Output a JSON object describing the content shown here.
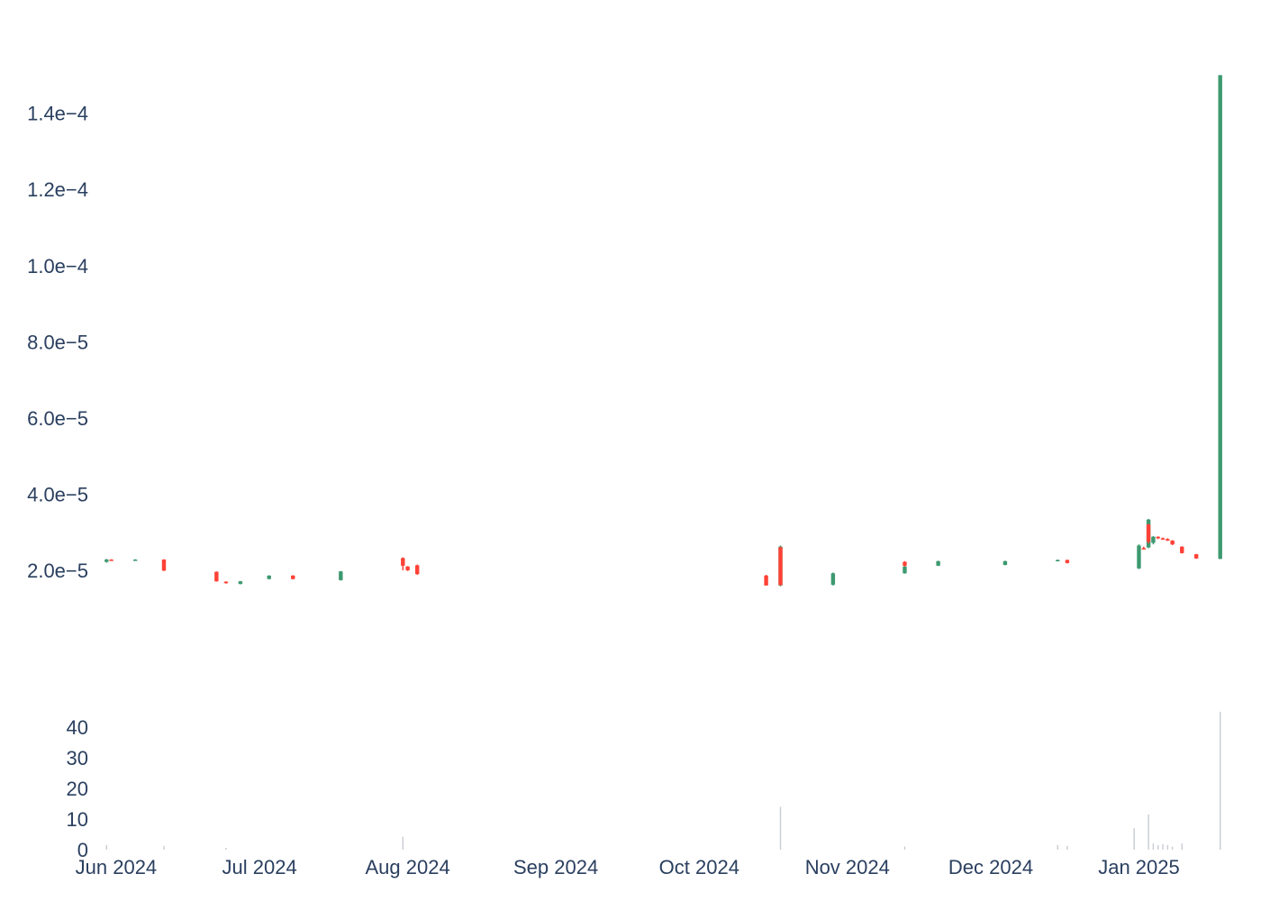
{
  "chart_data": {
    "type": "candlestick",
    "title": "",
    "xlabel": "",
    "ylabel": "",
    "grid": false,
    "colors": {
      "increasing": "#3d9970",
      "decreasing": "#ff4136",
      "volume": "#c8ccd4",
      "tick_text": "#2a3f5f"
    },
    "x_range": [
      "2024-05-29",
      "2025-01-19"
    ],
    "price_axis": {
      "range": [
        -6e-07,
        0.000165
      ],
      "ticks": [
        2e-05,
        4e-05,
        6e-05,
        8e-05,
        0.0001,
        0.00012,
        0.00014
      ],
      "tick_labels": [
        "2.0e−5",
        "4.0e−5",
        "6.0e−5",
        "8.0e−5",
        "1.0e−4",
        "1.2e−4",
        "1.4e−4"
      ]
    },
    "volume_axis": {
      "range": [
        0,
        45
      ],
      "ticks": [
        0,
        10,
        20,
        30,
        40
      ],
      "tick_labels": [
        "0",
        "10",
        "20",
        "30",
        "40"
      ]
    },
    "x_ticks": [
      "2024-06-01",
      "2024-07-01",
      "2024-08-01",
      "2024-09-01",
      "2024-10-01",
      "2024-11-01",
      "2024-12-01",
      "2025-01-01"
    ],
    "x_tick_labels": [
      "Jun 2024",
      "Jul 2024",
      "Aug 2024",
      "Sep 2024",
      "Oct 2024",
      "Nov 2024",
      "Dec 2024",
      "Jan 2025"
    ],
    "candles": [
      {
        "date": "2024-05-30",
        "open": 2.22e-05,
        "high": 2.3e-05,
        "low": 2.2e-05,
        "close": 2.28e-05
      },
      {
        "date": "2024-05-31",
        "open": 2.28e-05,
        "high": 2.29e-05,
        "low": 2.26e-05,
        "close": 2.27e-05
      },
      {
        "date": "2024-06-05",
        "open": 2.27e-05,
        "high": 2.29e-05,
        "low": 2.25e-05,
        "close": 2.28e-05
      },
      {
        "date": "2024-06-11",
        "open": 2.28e-05,
        "high": 2.29e-05,
        "low": 1.98e-05,
        "close": 1.99e-05
      },
      {
        "date": "2024-06-22",
        "open": 1.96e-05,
        "high": 1.97e-05,
        "low": 1.7e-05,
        "close": 1.71e-05
      },
      {
        "date": "2024-06-24",
        "open": 1.7e-05,
        "high": 1.71e-05,
        "low": 1.65e-05,
        "close": 1.66e-05
      },
      {
        "date": "2024-06-27",
        "open": 1.64e-05,
        "high": 1.72e-05,
        "low": 1.63e-05,
        "close": 1.71e-05
      },
      {
        "date": "2024-07-03",
        "open": 1.77e-05,
        "high": 1.87e-05,
        "low": 1.76e-05,
        "close": 1.86e-05
      },
      {
        "date": "2024-07-08",
        "open": 1.86e-05,
        "high": 1.87e-05,
        "low": 1.76e-05,
        "close": 1.77e-05
      },
      {
        "date": "2024-07-18",
        "open": 1.74e-05,
        "high": 1.98e-05,
        "low": 1.73e-05,
        "close": 1.97e-05
      },
      {
        "date": "2024-07-31",
        "open": 2.32e-05,
        "high": 2.34e-05,
        "low": 2e-05,
        "close": 2.12e-05
      },
      {
        "date": "2024-08-01",
        "open": 2.1e-05,
        "high": 2.11e-05,
        "low": 1.98e-05,
        "close": 2e-05
      },
      {
        "date": "2024-08-03",
        "open": 2.13e-05,
        "high": 2.15e-05,
        "low": 1.88e-05,
        "close": 1.9e-05
      },
      {
        "date": "2024-10-15",
        "open": 1.86e-05,
        "high": 1.88e-05,
        "low": 1.6e-05,
        "close": 1.6e-05
      },
      {
        "date": "2024-10-18",
        "open": 1.6e-05,
        "high": 2.65e-05,
        "low": 1.58e-05,
        "close": 2.62e-05
      },
      {
        "date": "2024-10-18",
        "open": 2.6e-05,
        "high": 2.62e-05,
        "low": 1.6e-05,
        "close": 1.61e-05
      },
      {
        "date": "2024-10-29",
        "open": 1.62e-05,
        "high": 1.94e-05,
        "low": 1.6e-05,
        "close": 1.92e-05
      },
      {
        "date": "2024-11-13",
        "open": 1.92e-05,
        "high": 2.12e-05,
        "low": 1.91e-05,
        "close": 2.1e-05
      },
      {
        "date": "2024-11-13",
        "open": 2.22e-05,
        "high": 2.24e-05,
        "low": 2.1e-05,
        "close": 2.12e-05
      },
      {
        "date": "2024-11-20",
        "open": 2.12e-05,
        "high": 2.25e-05,
        "low": 2.11e-05,
        "close": 2.24e-05
      },
      {
        "date": "2024-12-04",
        "open": 2.14e-05,
        "high": 2.25e-05,
        "low": 2.13e-05,
        "close": 2.24e-05
      },
      {
        "date": "2024-12-15",
        "open": 2.26e-05,
        "high": 2.28e-05,
        "low": 2.25e-05,
        "close": 2.27e-05
      },
      {
        "date": "2024-12-17",
        "open": 2.27e-05,
        "high": 2.28e-05,
        "low": 2.18e-05,
        "close": 2.19e-05
      },
      {
        "date": "2025-01-01",
        "open": 2.05e-05,
        "high": 2.68e-05,
        "low": 2.03e-05,
        "close": 2.65e-05
      },
      {
        "date": "2025-01-02",
        "open": 2.58e-05,
        "high": 2.62e-05,
        "low": 2.56e-05,
        "close": 2.57e-05
      },
      {
        "date": "2025-01-03",
        "open": 2.6e-05,
        "high": 3.35e-05,
        "low": 2.58e-05,
        "close": 3.33e-05
      },
      {
        "date": "2025-01-03",
        "open": 3.2e-05,
        "high": 3.22e-05,
        "low": 2.7e-05,
        "close": 2.75e-05
      },
      {
        "date": "2025-01-04",
        "open": 2.72e-05,
        "high": 2.9e-05,
        "low": 2.68e-05,
        "close": 2.88e-05
      },
      {
        "date": "2025-01-05",
        "open": 2.88e-05,
        "high": 2.89e-05,
        "low": 2.82e-05,
        "close": 2.84e-05
      },
      {
        "date": "2025-01-06",
        "open": 2.84e-05,
        "high": 2.86e-05,
        "low": 2.8e-05,
        "close": 2.82e-05
      },
      {
        "date": "2025-01-07",
        "open": 2.82e-05,
        "high": 2.84e-05,
        "low": 2.77e-05,
        "close": 2.78e-05
      },
      {
        "date": "2025-01-08",
        "open": 2.78e-05,
        "high": 2.79e-05,
        "low": 2.66e-05,
        "close": 2.68e-05
      },
      {
        "date": "2025-01-10",
        "open": 2.62e-05,
        "high": 2.63e-05,
        "low": 2.44e-05,
        "close": 2.45e-05
      },
      {
        "date": "2025-01-13",
        "open": 2.42e-05,
        "high": 2.43e-05,
        "low": 2.3e-05,
        "close": 2.31e-05
      },
      {
        "date": "2025-01-18",
        "open": 2.3e-05,
        "high": 0.00015,
        "low": 2.29e-05,
        "close": 0.00015
      }
    ],
    "volume": [
      {
        "date": "2024-05-30",
        "value": 1.5
      },
      {
        "date": "2024-06-11",
        "value": 1.2
      },
      {
        "date": "2024-06-24",
        "value": 0.6
      },
      {
        "date": "2024-07-31",
        "value": 4.2
      },
      {
        "date": "2024-10-18",
        "value": 14.0
      },
      {
        "date": "2024-11-13",
        "value": 1.0
      },
      {
        "date": "2024-12-15",
        "value": 1.5
      },
      {
        "date": "2024-12-17",
        "value": 1.2
      },
      {
        "date": "2024-12-31",
        "value": 7.0
      },
      {
        "date": "2025-01-03",
        "value": 11.5
      },
      {
        "date": "2025-01-04",
        "value": 2.0
      },
      {
        "date": "2025-01-05",
        "value": 1.5
      },
      {
        "date": "2025-01-06",
        "value": 1.8
      },
      {
        "date": "2025-01-07",
        "value": 1.5
      },
      {
        "date": "2025-01-08",
        "value": 1.0
      },
      {
        "date": "2025-01-10",
        "value": 2.0
      },
      {
        "date": "2025-01-18",
        "value": 46.0
      }
    ]
  }
}
